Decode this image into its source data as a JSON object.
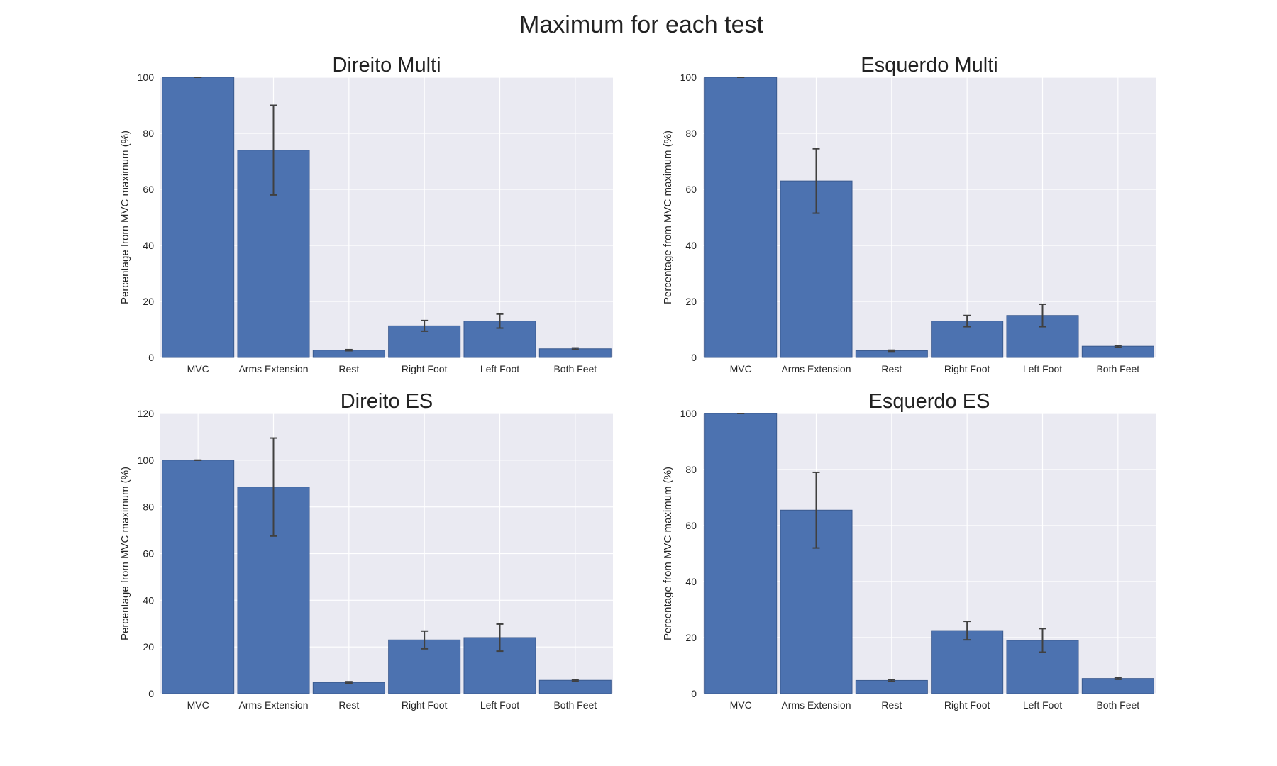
{
  "figure": {
    "title": "Maximum for each test",
    "background": "#ffffff",
    "axes_background": "#eaeaf2",
    "grid_color": "#ffffff",
    "bar_color": "#4c72b0",
    "bar_edge_color": "#3a5a8f",
    "errorbar_color": "#404040"
  },
  "chart_data": [
    {
      "type": "bar",
      "title": "Direito Multi",
      "ylabel": "Percentage from MVC maximum (%)",
      "categories": [
        "MVC",
        "Arms Extension",
        "Rest",
        "Right Foot",
        "Left Foot",
        "Both Feet"
      ],
      "values": [
        100,
        74,
        2.6,
        11.3,
        13,
        3.1
      ],
      "errors": [
        0,
        16,
        0.2,
        1.9,
        2.5,
        0.3
      ],
      "ylim": [
        0,
        100
      ],
      "yticks": [
        0,
        20,
        40,
        60,
        80,
        100
      ],
      "grid": true
    },
    {
      "type": "bar",
      "title": "Esquerdo Multi",
      "ylabel": "Percentage from MVC maximum (%)",
      "categories": [
        "MVC",
        "Arms Extension",
        "Rest",
        "Right Foot",
        "Left Foot",
        "Both Feet"
      ],
      "values": [
        100,
        63,
        2.4,
        13,
        15,
        4
      ],
      "errors": [
        0,
        11.5,
        0.2,
        2,
        4,
        0.3
      ],
      "ylim": [
        0,
        100
      ],
      "yticks": [
        0,
        20,
        40,
        60,
        80,
        100
      ],
      "grid": true
    },
    {
      "type": "bar",
      "title": "Direito ES",
      "ylabel": "Percentage from MVC maximum (%)",
      "categories": [
        "MVC",
        "Arms Extension",
        "Rest",
        "Right Foot",
        "Left Foot",
        "Both Feet"
      ],
      "values": [
        100,
        88.5,
        4.8,
        23,
        24,
        5.7
      ],
      "errors": [
        0,
        21,
        0.3,
        3.8,
        5.8,
        0.3
      ],
      "ylim": [
        0,
        120
      ],
      "yticks": [
        0,
        20,
        40,
        60,
        80,
        100,
        120
      ],
      "grid": true
    },
    {
      "type": "bar",
      "title": "Esquerdo ES",
      "ylabel": "Percentage from MVC maximum (%)",
      "categories": [
        "MVC",
        "Arms Extension",
        "Rest",
        "Right Foot",
        "Left Foot",
        "Both Feet"
      ],
      "values": [
        100,
        65.5,
        4.7,
        22.5,
        19,
        5.4
      ],
      "errors": [
        0,
        13.5,
        0.3,
        3.3,
        4.2,
        0.3
      ],
      "ylim": [
        0,
        100
      ],
      "yticks": [
        0,
        20,
        40,
        60,
        80,
        100
      ],
      "grid": true
    }
  ]
}
